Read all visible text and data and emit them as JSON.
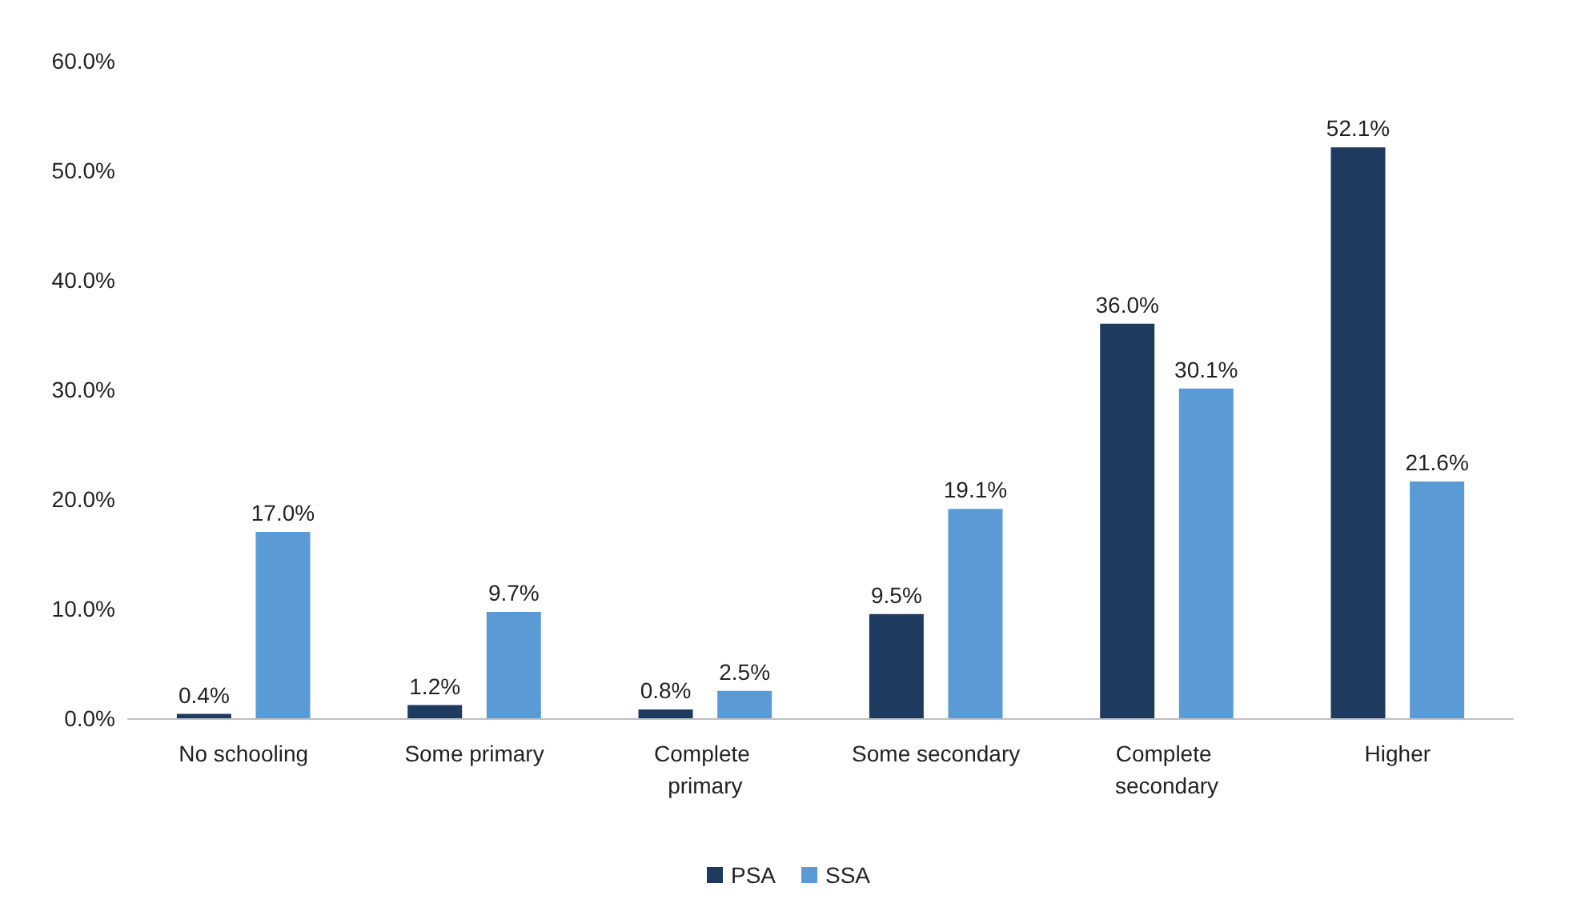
{
  "chart_data": {
    "type": "bar",
    "categories": [
      "No schooling",
      "Some primary",
      "Complete primary",
      "Some secondary",
      "Complete secondary",
      "Higher"
    ],
    "series": [
      {
        "name": "PSA",
        "color": "#1f3a5f",
        "values": [
          0.4,
          1.2,
          0.8,
          9.5,
          36.0,
          52.1
        ],
        "value_labels": [
          "0.4%",
          "1.2%",
          "0.8%",
          "9.5%",
          "36.0%",
          "52.1%"
        ]
      },
      {
        "name": "SSA",
        "color": "#5b9bd5",
        "values": [
          17.0,
          9.7,
          2.5,
          19.1,
          30.1,
          21.6
        ],
        "value_labels": [
          "17.0%",
          "9.7%",
          "2.5%",
          "19.1%",
          "30.1%",
          "21.6%"
        ]
      }
    ],
    "ylim": [
      0,
      60
    ],
    "yticks": [
      {
        "value": 0,
        "label": "0.0%"
      },
      {
        "value": 10,
        "label": "10.0%"
      },
      {
        "value": 20,
        "label": "20.0%"
      },
      {
        "value": 30,
        "label": "30.0%"
      },
      {
        "value": 40,
        "label": "40.0%"
      },
      {
        "value": 50,
        "label": "50.0%"
      },
      {
        "value": 60,
        "label": "60.0%"
      }
    ],
    "grid": false,
    "legend": "bottom"
  }
}
